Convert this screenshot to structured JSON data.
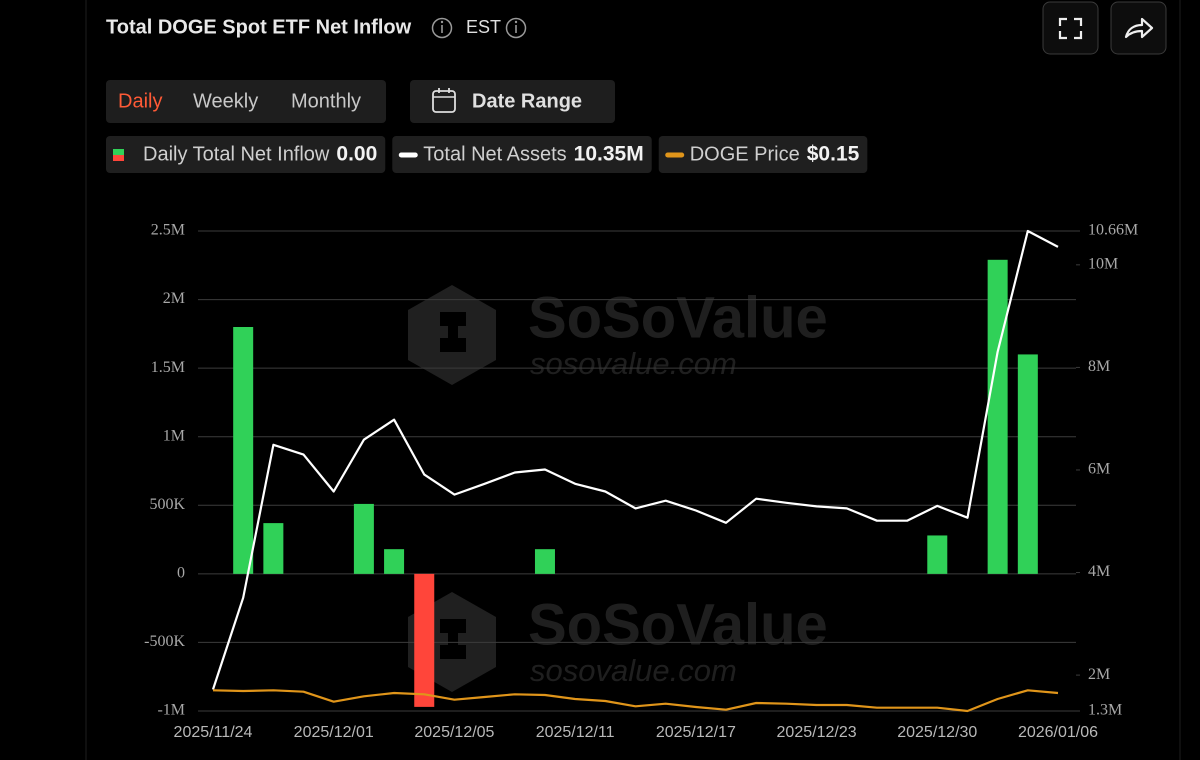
{
  "ui": {
    "title": "Total DOGE Spot ETF Net Inflow",
    "timezone": "EST",
    "tabs": [
      "Daily",
      "Weekly",
      "Monthly"
    ],
    "active_tab": 0,
    "date_range": "Date Range"
  },
  "watermark": {
    "brand": "SoSoValue",
    "url": "sosovalue.com"
  },
  "chart_data": {
    "type": "combo",
    "categories": [
      "2025/11/24",
      null,
      null,
      null,
      "2025/12/01",
      null,
      null,
      null,
      "2025/12/05",
      null,
      null,
      null,
      "2025/12/11",
      null,
      null,
      null,
      "2025/12/17",
      null,
      null,
      null,
      "2025/12/23",
      null,
      null,
      null,
      "2025/12/30",
      null,
      null,
      null,
      "2026/01/06"
    ],
    "series": [
      {
        "name": "Daily Total Net Inflow",
        "type": "bar",
        "color": "#30d158",
        "negative_color": "#ff453a",
        "current": "0.00",
        "values": [
          0,
          1800000,
          370000,
          0,
          0,
          510000,
          180000,
          -970000,
          0,
          0,
          0,
          180000,
          0,
          0,
          0,
          0,
          0,
          0,
          0,
          0,
          0,
          0,
          0,
          0,
          280000,
          0,
          2290000,
          1600000,
          0
        ]
      },
      {
        "name": "Total Net Assets",
        "type": "line",
        "color": "#ffffff",
        "axis": "y2",
        "current": "10.35M",
        "values": [
          1720000,
          3510000,
          6490000,
          6300000,
          5580000,
          6590000,
          6980000,
          5910000,
          5520000,
          5730000,
          5950000,
          6010000,
          5730000,
          5580000,
          5250000,
          5400000,
          5210000,
          4970000,
          5440000,
          5360000,
          5290000,
          5250000,
          5010000,
          5010000,
          5300000,
          5070000,
          8300000,
          10660000,
          10350000
        ]
      },
      {
        "name": "DOGE Price",
        "type": "line",
        "color": "#e0951a",
        "axis": "y3",
        "current": "$0.15",
        "values": [
          0.151,
          0.15,
          0.151,
          0.149,
          0.134,
          0.142,
          0.147,
          0.145,
          0.137,
          0.141,
          0.145,
          0.144,
          0.138,
          0.135,
          0.127,
          0.131,
          0.126,
          0.122,
          0.132,
          0.131,
          0.129,
          0.129,
          0.125,
          0.125,
          0.125,
          0.12,
          0.138,
          0.151,
          0.147
        ]
      }
    ],
    "ylim": [
      -1000000,
      2500000
    ],
    "yticks": [
      {
        "value": -1000000,
        "label": "-1M"
      },
      {
        "value": -500000,
        "label": "-500K"
      },
      0,
      {
        "value": 500000,
        "label": "500K"
      },
      {
        "value": 1000000,
        "label": "1M"
      },
      {
        "value": 1500000,
        "label": "1.5M"
      },
      {
        "value": 2000000,
        "label": "2M"
      },
      {
        "value": 2500000,
        "label": "2.5M"
      }
    ],
    "y2lim": [
      1300000,
      10660000
    ],
    "y2ticks": [
      {
        "value": 1300000,
        "label": "1.3M"
      },
      {
        "value": 2000000,
        "label": "2M"
      },
      {
        "value": 4000000,
        "label": "4M"
      },
      {
        "value": 6000000,
        "label": "6M"
      },
      {
        "value": 8000000,
        "label": "8M"
      },
      {
        "value": 10000000,
        "label": "10M"
      },
      {
        "value": 10660000,
        "label": "10.66M"
      }
    ],
    "y3lim": [
      0.12,
      0.84
    ],
    "grid": true
  }
}
